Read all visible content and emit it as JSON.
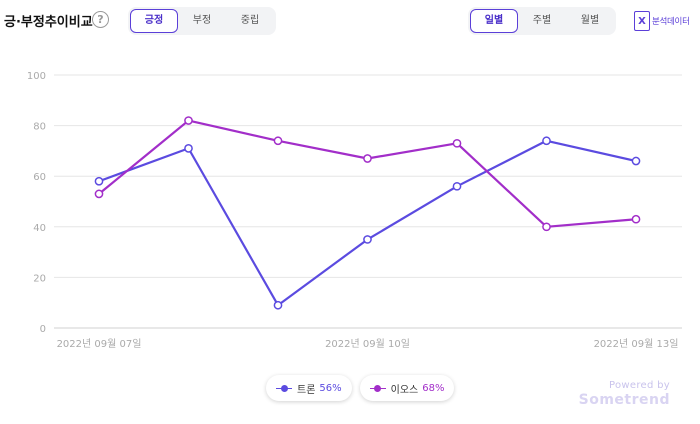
{
  "header": {
    "title": "긍·부정추이비교",
    "help_glyph": "?",
    "sentiment_tabs": [
      "긍정",
      "부정",
      "중립"
    ],
    "sentiment_active": 0,
    "period_tabs": [
      "일별",
      "주별",
      "월별"
    ],
    "period_active": 0,
    "analysis_label": "분석데이터",
    "analysis_icon": "x-file-icon"
  },
  "legend": [
    {
      "name": "트론",
      "percent": "56%",
      "color": "#5b4be0"
    },
    {
      "name": "이오스",
      "percent": "68%",
      "color": "#a22ec9"
    }
  ],
  "powered": {
    "line1": "Powered by",
    "line2": "Sometrend"
  },
  "chart_data": {
    "type": "line",
    "x": [
      "2022년 09월 07일",
      "2022년 09월 08일",
      "2022년 09월 09일",
      "2022년 09월 10일",
      "2022년 09월 11일",
      "2022년 09월 12일",
      "2022년 09월 13일"
    ],
    "x_tick_labels": [
      "2022년 09월 07일",
      "2022년 09월 10일",
      "2022년 09월 13일"
    ],
    "y_ticks": [
      0,
      20,
      40,
      60,
      80,
      100
    ],
    "ylim": [
      0,
      100
    ],
    "grid": true,
    "series": [
      {
        "name": "트론",
        "color": "#5b4be0",
        "values": [
          58,
          71,
          9,
          35,
          56,
          74,
          66
        ]
      },
      {
        "name": "이오스",
        "color": "#a22ec9",
        "values": [
          53,
          82,
          74,
          67,
          73,
          40,
          43
        ]
      }
    ]
  }
}
